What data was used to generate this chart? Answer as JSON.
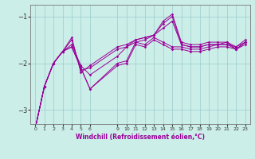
{
  "title": "",
  "xlabel": "Windchill (Refroidissement éolien,°C)",
  "ylabel": "",
  "bg_color": "#cceee8",
  "line_color": "#990099",
  "grid_color": "#99cccc",
  "xlim": [
    -0.5,
    23.5
  ],
  "ylim": [
    -3.3,
    -0.75
  ],
  "yticks": [
    -3,
    -2,
    -1
  ],
  "xtick_positions": [
    0,
    1,
    2,
    3,
    4,
    5,
    6,
    9,
    10,
    11,
    12,
    13,
    14,
    15,
    16,
    17,
    18,
    19,
    20,
    21,
    22,
    23
  ],
  "xtick_labels": [
    "0",
    "1",
    "2",
    "3",
    "4",
    "5",
    "6",
    "9",
    "10",
    "11",
    "12",
    "13",
    "14",
    "15",
    "16",
    "17",
    "18",
    "19",
    "20",
    "21",
    "22",
    "23"
  ],
  "x": [
    0,
    1,
    2,
    3,
    4,
    5,
    6,
    9,
    10,
    11,
    12,
    13,
    14,
    15,
    16,
    17,
    18,
    19,
    20,
    21,
    22,
    23
  ],
  "series": [
    [
      -3.4,
      -2.5,
      -2.0,
      -1.75,
      -1.65,
      -2.1,
      -2.55,
      -2.0,
      -1.95,
      -1.55,
      -1.6,
      -1.45,
      -1.55,
      -1.65,
      -1.65,
      -1.7,
      -1.7,
      -1.65,
      -1.6,
      -1.6,
      -1.65,
      -1.55
    ],
    [
      -3.4,
      -2.5,
      -2.0,
      -1.75,
      -1.6,
      -2.05,
      -2.25,
      -1.85,
      -1.65,
      -1.55,
      -1.5,
      -1.4,
      -1.25,
      -1.1,
      -1.6,
      -1.65,
      -1.65,
      -1.6,
      -1.6,
      -1.6,
      -1.7,
      -1.55
    ],
    [
      -3.4,
      -2.5,
      -2.0,
      -1.75,
      -1.5,
      -2.15,
      -2.1,
      -1.7,
      -1.65,
      -1.5,
      -1.45,
      -1.4,
      -1.15,
      -1.0,
      -1.6,
      -1.65,
      -1.65,
      -1.6,
      -1.6,
      -1.55,
      -1.7,
      -1.55
    ],
    [
      -3.4,
      -2.5,
      -2.0,
      -1.75,
      -1.45,
      -2.2,
      -2.05,
      -1.65,
      -1.6,
      -1.5,
      -1.45,
      -1.4,
      -1.1,
      -0.95,
      -1.55,
      -1.6,
      -1.6,
      -1.55,
      -1.55,
      -1.55,
      -1.65,
      -1.5
    ],
    [
      -3.4,
      -2.5,
      -2.0,
      -1.75,
      -1.65,
      -2.1,
      -2.55,
      -2.05,
      -2.0,
      -1.6,
      -1.65,
      -1.5,
      -1.6,
      -1.7,
      -1.7,
      -1.75,
      -1.75,
      -1.7,
      -1.65,
      -1.65,
      -1.7,
      -1.6
    ]
  ]
}
